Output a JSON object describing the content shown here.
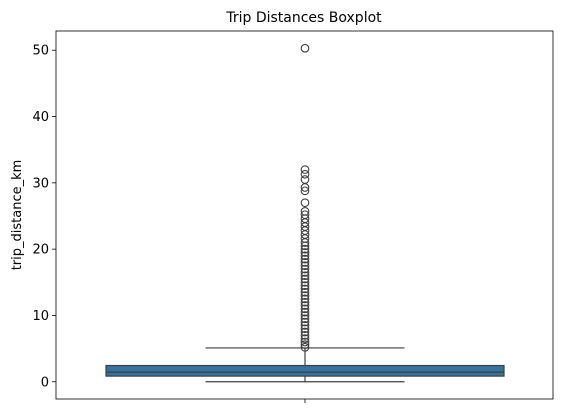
{
  "chart_data": {
    "type": "boxplot",
    "title": "Trip Distances Boxplot",
    "xlabel": "",
    "ylabel": "trip_distance_km",
    "ylim": [
      -2.6,
      52.9
    ],
    "yticks": [
      0,
      10,
      20,
      30,
      40,
      50
    ],
    "grid": false,
    "box": {
      "color": "#3174a1",
      "whisker_low": 0.0,
      "q1": 0.85,
      "median": 1.45,
      "q3": 2.45,
      "whisker_high": 5.1
    },
    "outliers": [
      5.2,
      5.6,
      6.0,
      6.5,
      7.0,
      7.5,
      8.0,
      8.5,
      9.0,
      9.5,
      10.0,
      10.5,
      11.0,
      11.5,
      12.0,
      12.5,
      13.0,
      13.5,
      14.0,
      14.5,
      15.0,
      15.5,
      16.0,
      16.5,
      17.0,
      17.5,
      18.0,
      18.5,
      19.0,
      19.5,
      20.0,
      20.5,
      21.0,
      21.6,
      22.2,
      22.8,
      23.4,
      24.0,
      24.6,
      25.2,
      25.7,
      27.0,
      28.8,
      29.3,
      30.5,
      31.3,
      32.0,
      50.3
    ]
  }
}
